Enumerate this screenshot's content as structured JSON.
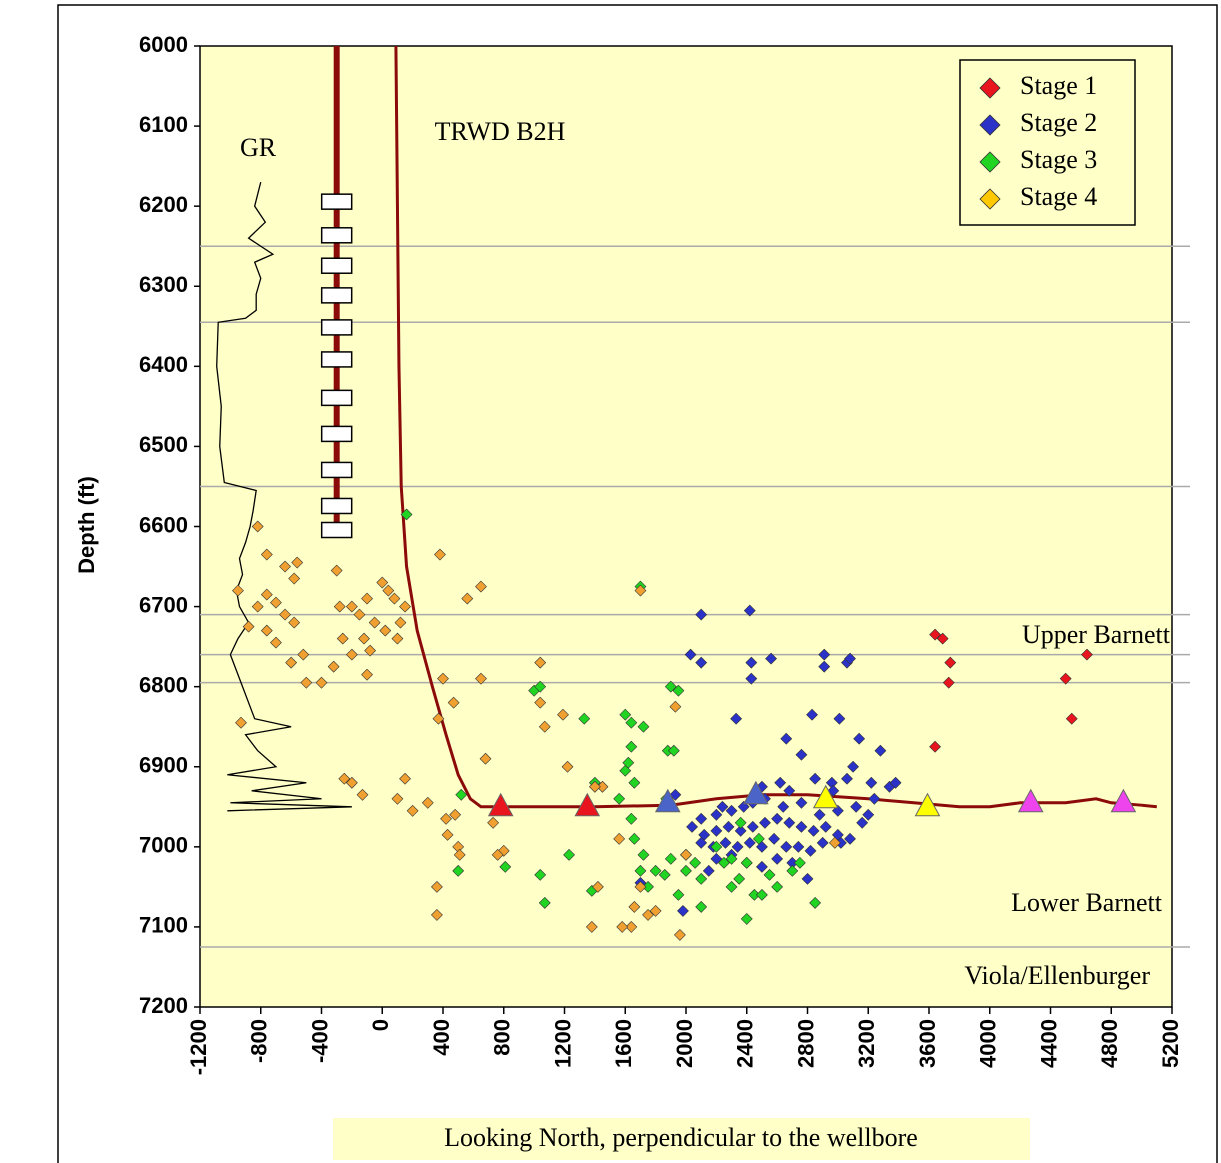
{
  "chart_data": {
    "type": "scatter",
    "xlabel": "Looking North, perpendicular to the wellbore",
    "ylabel": "Depth (ft)",
    "xlim": [
      -1200,
      5200
    ],
    "xticks": [
      -1200,
      -800,
      -400,
      0,
      400,
      800,
      1200,
      1600,
      2000,
      2400,
      2800,
      3200,
      3600,
      4000,
      4400,
      4800,
      5200
    ],
    "ylim": [
      6000,
      7200
    ],
    "yticks": [
      6000,
      6100,
      6200,
      6300,
      6400,
      6500,
      6600,
      6700,
      6800,
      6900,
      7000,
      7100,
      7200
    ],
    "y_inverted": true,
    "legend_position": "upper right",
    "series": [
      {
        "name": "Stage 1",
        "color": "#e8141e",
        "x": [
          3640,
          3690,
          3740,
          3730,
          3640,
          4500,
          4640,
          4540
        ],
        "values": [
          6735,
          6740,
          6770,
          6795,
          6875,
          6790,
          6760,
          6840
        ]
      },
      {
        "name": "Stage 2",
        "color": "#2b32c8",
        "x": [
          2100,
          2420,
          2030,
          2100,
          2430,
          2560,
          2430,
          2330,
          2910,
          2910,
          3060,
          3080,
          2830,
          3010,
          2660,
          2760,
          3140,
          3280,
          2620,
          2850,
          2960,
          3060,
          3220,
          3340,
          3380,
          3240,
          3120,
          3000,
          2880,
          2760,
          2640,
          2520,
          2440,
          2380,
          2300,
          2200,
          2100,
          2040,
          2120,
          2200,
          2280,
          2360,
          2440,
          2520,
          2600,
          2680,
          2760,
          2840,
          2920,
          3000,
          3080,
          3160,
          3200,
          2100,
          2180,
          2260,
          2340,
          2420,
          2500,
          2580,
          2660,
          2740,
          2820,
          2900,
          3020,
          2200,
          2300,
          2400,
          2500,
          2600,
          2700,
          2800,
          2000,
          1700,
          1980,
          1930,
          2150,
          2500,
          2680,
          3100,
          2970,
          2240
        ],
        "values": [
          6710,
          6705,
          6760,
          6770,
          6770,
          6765,
          6790,
          6840,
          6760,
          6775,
          6770,
          6765,
          6835,
          6840,
          6865,
          6885,
          6865,
          6880,
          6920,
          6915,
          6920,
          6915,
          6920,
          6925,
          6920,
          6940,
          6950,
          6955,
          6960,
          6945,
          6950,
          6940,
          6945,
          6950,
          6955,
          6960,
          6965,
          6975,
          6985,
          6980,
          6975,
          6980,
          6975,
          6970,
          6965,
          6970,
          6975,
          6980,
          6975,
          6985,
          6990,
          6970,
          6960,
          6995,
          7000,
          6995,
          7000,
          6995,
          7000,
          6990,
          7000,
          7000,
          7005,
          6995,
          6995,
          7015,
          7010,
          7020,
          7025,
          7015,
          7020,
          7040,
          7010,
          7045,
          7080,
          6935,
          7030,
          6925,
          6930,
          6900,
          6930,
          6950
        ]
      },
      {
        "name": "Stage 3",
        "color": "#22d422",
        "x": [
          160,
          520,
          500,
          810,
          1000,
          1040,
          1040,
          1070,
          1330,
          1600,
          1640,
          1640,
          1660,
          1720,
          1700,
          1880,
          1920,
          1900,
          1950,
          1600,
          1620,
          1560,
          1640,
          1660,
          1720,
          1750,
          1800,
          1860,
          1900,
          2000,
          2060,
          2100,
          2200,
          2250,
          2300,
          2350,
          2400,
          2450,
          2500,
          2550,
          2700,
          2750,
          2850,
          2400,
          1700,
          1380,
          1230,
          2100,
          1950,
          1870,
          1400,
          2300,
          2600,
          2480,
          2360
        ],
        "values": [
          6585,
          6935,
          7030,
          7025,
          6805,
          6800,
          7035,
          7070,
          6840,
          6835,
          6845,
          6875,
          6920,
          6850,
          6675,
          6880,
          6880,
          6800,
          6805,
          6905,
          6895,
          6940,
          6965,
          6990,
          7010,
          7050,
          7030,
          7035,
          7015,
          7030,
          7020,
          7040,
          7000,
          7020,
          7050,
          7040,
          7020,
          7060,
          7060,
          7035,
          7030,
          7020,
          7070,
          7090,
          7030,
          7055,
          7010,
          7075,
          7060,
          6940,
          6920,
          7015,
          7050,
          6990,
          6970
        ]
      },
      {
        "name": "Stage 4",
        "color": "#f0a030",
        "legend_color": "#ffc800",
        "x": [
          -820,
          -760,
          -640,
          -560,
          -580,
          -950,
          -760,
          -820,
          -700,
          -640,
          -580,
          -760,
          -700,
          -520,
          -600,
          -880,
          -500,
          -400,
          -320,
          -930,
          -280,
          -200,
          -150,
          -100,
          0,
          40,
          80,
          150,
          -50,
          20,
          100,
          -120,
          -200,
          -260,
          -80,
          120,
          -300,
          -100,
          380,
          560,
          650,
          400,
          650,
          470,
          370,
          680,
          -250,
          -200,
          -130,
          150,
          100,
          200,
          300,
          420,
          480,
          430,
          500,
          510,
          360,
          360,
          730,
          800,
          760,
          1040,
          1040,
          1070,
          1190,
          1220,
          1700,
          1560,
          1450,
          1400,
          1700,
          1660,
          1750,
          1800,
          1640,
          1420,
          1580,
          1960,
          1380,
          2000,
          2980,
          1930
        ],
        "values": [
          6600,
          6635,
          6650,
          6645,
          6665,
          6680,
          6685,
          6700,
          6695,
          6710,
          6720,
          6730,
          6745,
          6760,
          6770,
          6725,
          6795,
          6795,
          6775,
          6845,
          6700,
          6700,
          6710,
          6690,
          6670,
          6680,
          6690,
          6700,
          6720,
          6730,
          6740,
          6740,
          6760,
          6740,
          6755,
          6720,
          6655,
          6785,
          6635,
          6690,
          6675,
          6790,
          6790,
          6820,
          6840,
          6890,
          6915,
          6920,
          6935,
          6915,
          6940,
          6955,
          6945,
          6965,
          6960,
          6985,
          7000,
          7010,
          7050,
          7085,
          6970,
          7005,
          7010,
          6770,
          6820,
          6850,
          6835,
          6900,
          6680,
          6990,
          6925,
          6925,
          7050,
          7075,
          7085,
          7080,
          7100,
          7050,
          7100,
          7110,
          7100,
          7010,
          6995,
          6825
        ]
      }
    ],
    "curves": [
      {
        "name": "GR",
        "color": "#000000",
        "x": [
          -800,
          -840,
          -770,
          -880,
          -720,
          -840,
          -800,
          -830,
          -830,
          -900,
          -1080,
          -1090,
          -1060,
          -1070,
          -1040,
          -830,
          -850,
          -870,
          -900,
          -940,
          -920,
          -960,
          -940,
          -880,
          -950,
          -1000,
          -960,
          -920,
          -880,
          -840,
          -600,
          -900,
          -820,
          -700,
          -1020,
          -500,
          -860,
          -400,
          -1000,
          -200,
          -1020
        ],
        "values": [
          6170,
          6200,
          6220,
          6240,
          6260,
          6270,
          6290,
          6310,
          6330,
          6340,
          6345,
          6400,
          6450,
          6500,
          6545,
          6555,
          6580,
          6600,
          6620,
          6640,
          6660,
          6680,
          6700,
          6720,
          6740,
          6760,
          6780,
          6800,
          6820,
          6840,
          6850,
          6860,
          6880,
          6900,
          6910,
          6920,
          6930,
          6940,
          6945,
          6950,
          6955
        ]
      },
      {
        "name": "TRWD B2H",
        "color": "#8b0a0a",
        "x": [
          90,
          100,
          110,
          125,
          160,
          230,
          330,
          420,
          500,
          580,
          650,
          900,
          1400,
          1900,
          2200,
          2500,
          2800,
          3200,
          3500,
          3800,
          4000,
          4200,
          4500,
          4700,
          4800,
          5000,
          5100
        ],
        "values": [
          6000,
          6200,
          6400,
          6550,
          6650,
          6730,
          6800,
          6860,
          6910,
          6940,
          6950,
          6950,
          6950,
          6948,
          6940,
          6935,
          6935,
          6940,
          6945,
          6950,
          6950,
          6945,
          6945,
          6940,
          6945,
          6948,
          6950
        ]
      }
    ],
    "perforations": {
      "x": [
        780,
        1350,
        1880,
        2460,
        2920,
        3590,
        4270,
        4880
      ],
      "values": [
        6950,
        6950,
        6945,
        6935,
        6940,
        6950,
        6945,
        6945
      ],
      "colors": [
        "#e8141e",
        "#e8141e",
        "#4a64c8",
        "#4a64c8",
        "#ffff00",
        "#ffff00",
        "#ee44ee",
        "#ee44ee"
      ]
    },
    "formation_tops": [
      6250,
      6345,
      6550,
      6710,
      6760,
      6795,
      7125
    ],
    "annotations": [
      "Upper Barnett",
      "Lower Barnett",
      "Viola/Ellenburger"
    ]
  }
}
